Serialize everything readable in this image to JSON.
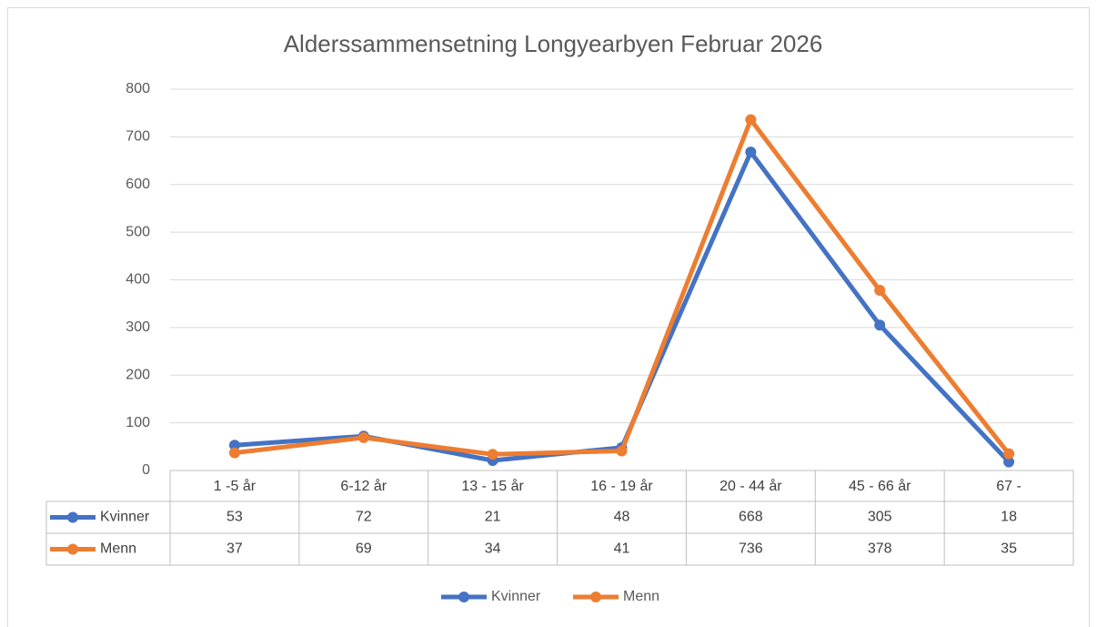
{
  "chart_data": {
    "type": "line",
    "title": "Alderssammensetning Longyearbyen Februar 2026",
    "categories": [
      "1 -5 år",
      "6-12 år",
      "13 - 15 år",
      "16 - 19 år",
      "20 - 44 år",
      "45 - 66 år",
      "67 -"
    ],
    "series": [
      {
        "name": "Kvinner",
        "color": "#4472c4",
        "values": [
          53,
          72,
          21,
          48,
          668,
          305,
          18
        ]
      },
      {
        "name": "Menn",
        "color": "#ed7d31",
        "values": [
          37,
          69,
          34,
          41,
          736,
          378,
          35
        ]
      }
    ],
    "ylim": [
      0,
      800
    ],
    "yticks": [
      0,
      100,
      200,
      300,
      400,
      500,
      600,
      700,
      800
    ],
    "grid": true,
    "legend": "bottom",
    "data_table": true
  }
}
